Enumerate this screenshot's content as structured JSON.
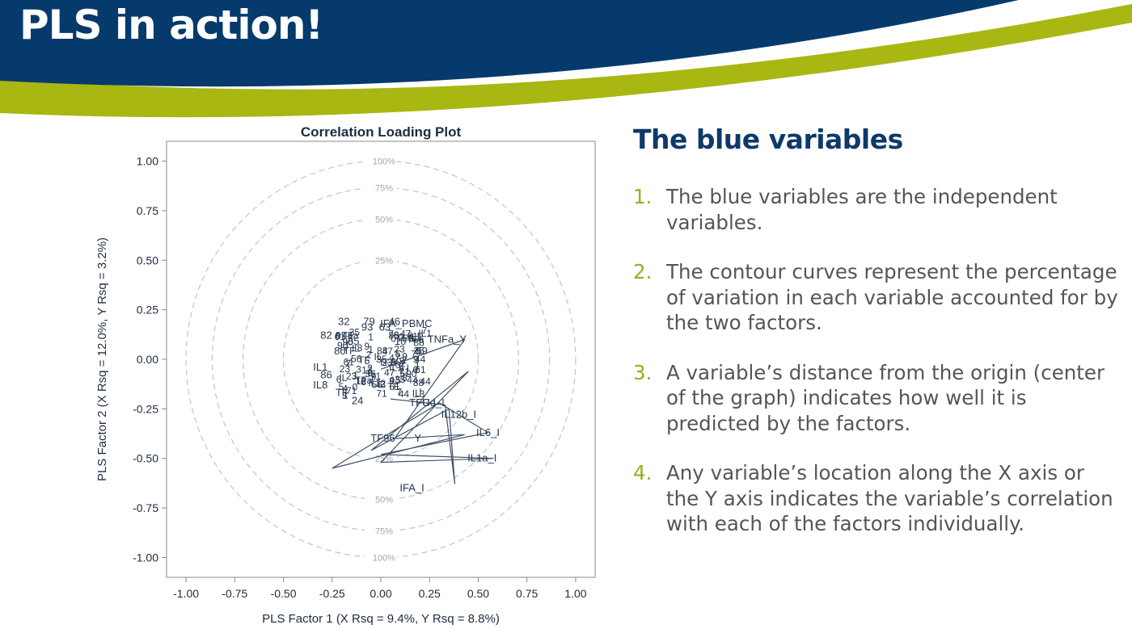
{
  "slide": {
    "title": "PLS in action!",
    "colors": {
      "header_blue": "#063a6c",
      "accent_green": "#a8b712",
      "heading_blue": "#0d3a6a",
      "body_gray": "#555555"
    }
  },
  "panel": {
    "heading": "The blue variables",
    "points": [
      {
        "num": "1.",
        "text": "The blue variables are the independent variables."
      },
      {
        "num": "2.",
        "text": "The contour curves represent the percentage of variation in each variable accounted for by the two factors."
      },
      {
        "num": "3.",
        "text": "A variable’s distance from the origin (center of the graph) indicates how well it is predicted by the factors."
      },
      {
        "num": "4.",
        "text": "Any variable’s location along the X axis or the Y axis indicates the variable’s correlation with each of the factors individually."
      }
    ]
  },
  "chart_data": {
    "type": "scatter",
    "title": "Correlation Loading Plot",
    "xlabel": "PLS Factor 1 (X Rsq = 9.4%, Y Rsq = 8.8%)",
    "ylabel": "PLS Factor 2 (X Rsq = 12.0%, Y Rsq = 3.2%)",
    "xlim": [
      -1.1,
      1.1
    ],
    "ylim": [
      -1.1,
      1.1
    ],
    "x_ticks": [
      "-1.00",
      "-0.75",
      "-0.50",
      "-0.25",
      "0.00",
      "0.25",
      "0.50",
      "0.75",
      "1.00"
    ],
    "y_ticks": [
      "1.00",
      "0.75",
      "0.50",
      "0.25",
      "0.00",
      "-0.25",
      "-0.50",
      "-0.75",
      "-1.00"
    ],
    "circles": [
      {
        "r": 0.5,
        "label": "25%"
      },
      {
        "r": 0.7071,
        "label": "50%"
      },
      {
        "r": 0.866,
        "label": "75%"
      },
      {
        "r": 1.0,
        "label": "100%"
      }
    ],
    "labeled_points": [
      {
        "label": "IFA_PBMC",
        "x": 0.13,
        "y": 0.18
      },
      {
        "label": "TNFa_Y",
        "x": 0.34,
        "y": 0.1
      },
      {
        "label": "TFG",
        "x": 0.2,
        "y": -0.22
      },
      {
        "label": "Ud_I",
        "x": 0.27,
        "y": -0.22
      },
      {
        "label": "IL12b_I",
        "x": 0.4,
        "y": -0.28
      },
      {
        "label": "IL6_I",
        "x": 0.55,
        "y": -0.37
      },
      {
        "label": "IL1a_I",
        "x": 0.52,
        "y": -0.5
      },
      {
        "label": "IFA_I",
        "x": 0.16,
        "y": -0.65
      },
      {
        "label": "Y",
        "x": 0.19,
        "y": -0.4
      },
      {
        "label": "TF96",
        "x": 0.01,
        "y": -0.4
      },
      {
        "label": "32",
        "x": -0.19,
        "y": 0.19
      },
      {
        "label": "79",
        "x": -0.06,
        "y": 0.19
      },
      {
        "label": "46",
        "x": 0.07,
        "y": 0.19
      },
      {
        "label": "93",
        "x": -0.07,
        "y": 0.16
      },
      {
        "label": "63",
        "x": 0.02,
        "y": 0.16
      },
      {
        "label": "82",
        "x": -0.28,
        "y": 0.12
      },
      {
        "label": "85",
        "x": -0.14,
        "y": 0.09
      },
      {
        "label": "10",
        "x": 0.1,
        "y": 0.09
      },
      {
        "label": "80",
        "x": -0.21,
        "y": 0.04
      },
      {
        "label": "59",
        "x": 0.21,
        "y": 0.04
      },
      {
        "label": "IL1",
        "x": -0.31,
        "y": -0.04
      },
      {
        "label": "86",
        "x": -0.28,
        "y": -0.08
      },
      {
        "label": "IL8",
        "x": -0.31,
        "y": -0.13
      },
      {
        "label": "TF",
        "x": -0.2,
        "y": -0.17
      },
      {
        "label": "24",
        "x": -0.12,
        "y": -0.21
      }
    ],
    "connector_path": [
      [
        0.0,
        -0.05
      ],
      [
        0.43,
        0.1
      ],
      [
        0.07,
        -0.4
      ],
      [
        0.43,
        -0.38
      ],
      [
        -0.25,
        -0.55
      ],
      [
        0.3,
        -0.22
      ],
      [
        0.55,
        -0.37
      ],
      [
        0.0,
        -0.48
      ],
      [
        0.58,
        -0.5
      ],
      [
        0.0,
        -0.52
      ],
      [
        0.45,
        -0.06
      ],
      [
        -0.05,
        -0.46
      ],
      [
        0.35,
        -0.25
      ],
      [
        0.38,
        -0.63
      ],
      [
        0.33,
        -0.23
      ],
      [
        0.05,
        -0.2
      ]
    ],
    "cluster_count": 110
  }
}
